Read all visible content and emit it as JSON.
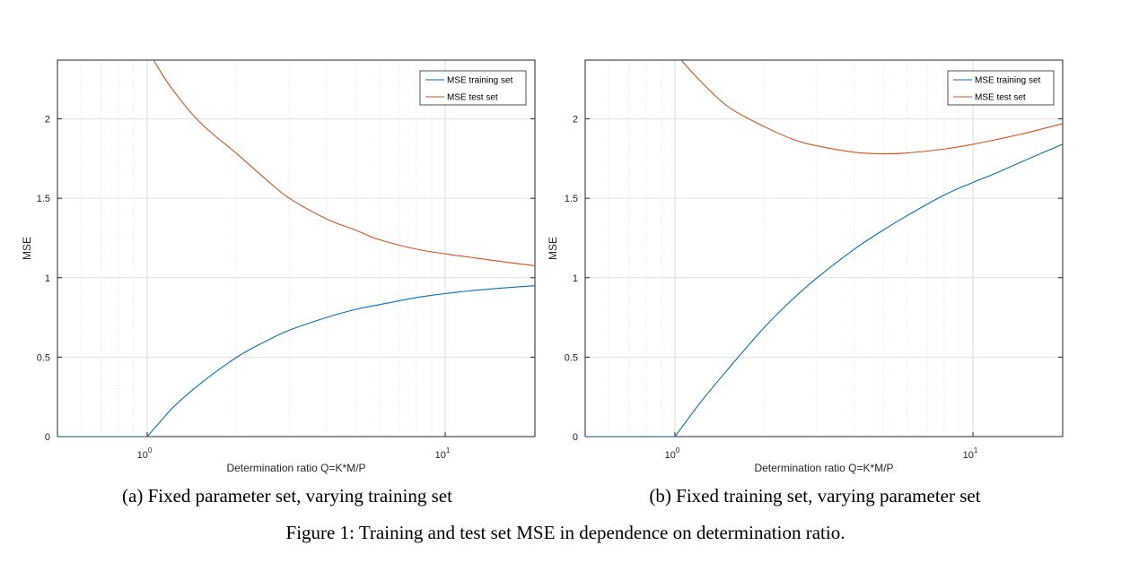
{
  "figure": {
    "caption": "Figure 1: Training and test set MSE in dependence on determination ratio."
  },
  "colors": {
    "train": "#0072bd",
    "test": "#d95319",
    "grid": "#e3e3e3",
    "axis": "#262626"
  },
  "chart_data": [
    {
      "type": "line",
      "caption": "(a) Fixed parameter set, varying training set",
      "xlabel": "Determination ratio Q=K*M/P",
      "ylabel": "MSE",
      "xscale": "log",
      "xlim": [
        0.5,
        20
      ],
      "ylim": [
        0,
        2.37
      ],
      "yticks": [
        0,
        0.5,
        1,
        1.5,
        2
      ],
      "ytick_labels": [
        "0",
        "0.5",
        "1",
        "1.5",
        "2"
      ],
      "xticks": [
        1,
        10
      ],
      "xtick_labels": [
        "10^0",
        "10^1"
      ],
      "grid": true,
      "legend_position": "top-right",
      "series": [
        {
          "name": "MSE training set",
          "x": [
            0.5,
            0.7,
            0.9,
            1,
            1.2,
            1.5,
            2,
            2.5,
            3,
            4,
            5,
            6,
            8,
            10,
            12,
            15,
            20
          ],
          "y": [
            0,
            0,
            0,
            0,
            0.17,
            0.33,
            0.5,
            0.6,
            0.67,
            0.75,
            0.8,
            0.83,
            0.875,
            0.9,
            0.917,
            0.933,
            0.95
          ]
        },
        {
          "name": "MSE test set",
          "x": [
            1.05,
            1.2,
            1.5,
            2,
            2.5,
            3,
            4,
            5,
            6,
            8,
            10,
            12,
            15,
            20
          ],
          "y": [
            2.37,
            2.2,
            1.98,
            1.78,
            1.62,
            1.5,
            1.37,
            1.3,
            1.24,
            1.18,
            1.15,
            1.13,
            1.105,
            1.075
          ]
        }
      ]
    },
    {
      "type": "line",
      "caption": "(b) Fixed training set, varying parameter set",
      "xlabel": "Determination ratio Q=K*M/P",
      "ylabel": "MSE",
      "xscale": "log",
      "xlim": [
        0.5,
        20
      ],
      "ylim": [
        0,
        2.37
      ],
      "yticks": [
        0,
        0.5,
        1,
        1.5,
        2
      ],
      "ytick_labels": [
        "0",
        "0.5",
        "1",
        "1.5",
        "2"
      ],
      "xticks": [
        1,
        10
      ],
      "xtick_labels": [
        "10^0",
        "10^1"
      ],
      "grid": true,
      "legend_position": "top-right",
      "series": [
        {
          "name": "MSE training set",
          "x": [
            0.5,
            0.7,
            0.9,
            1,
            1.2,
            1.5,
            2,
            2.5,
            3,
            4,
            5,
            6,
            8,
            10,
            12,
            15,
            20
          ],
          "y": [
            0,
            0,
            0,
            0,
            0.2,
            0.42,
            0.69,
            0.87,
            1.0,
            1.18,
            1.3,
            1.39,
            1.52,
            1.6,
            1.66,
            1.74,
            1.84
          ]
        },
        {
          "name": "MSE test set",
          "x": [
            1.05,
            1.2,
            1.5,
            2,
            2.5,
            3,
            4,
            5,
            6,
            8,
            10,
            12,
            15,
            20
          ],
          "y": [
            2.37,
            2.25,
            2.08,
            1.95,
            1.87,
            1.83,
            1.79,
            1.78,
            1.785,
            1.81,
            1.84,
            1.87,
            1.91,
            1.97
          ]
        }
      ]
    }
  ]
}
